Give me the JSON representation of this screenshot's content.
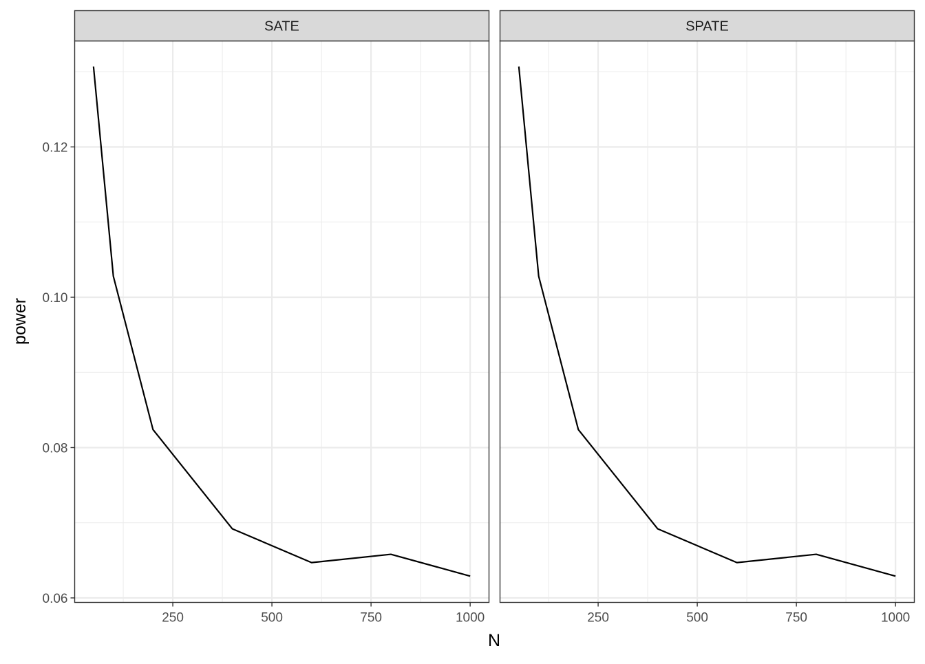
{
  "chart_data": {
    "type": "line",
    "facets": [
      "SATE",
      "SPATE"
    ],
    "xlabel": "N",
    "ylabel": "power",
    "x_ticks": [
      250,
      500,
      750,
      1000
    ],
    "x_tick_labels": [
      "250",
      "500",
      "750",
      "1000"
    ],
    "y_ticks": [
      0.06,
      0.08,
      0.1,
      0.12
    ],
    "y_tick_labels": [
      "0.06",
      "0.08",
      "0.10",
      "0.12"
    ],
    "xlim": [
      2.5,
      1047.5
    ],
    "ylim": [
      0.0594,
      0.1341
    ],
    "grid": true,
    "line_color": "#000000",
    "strip_fill": "#d9d9d9",
    "gridline_color": "#ebebeb",
    "series": [
      {
        "facet": "SATE",
        "x": [
          50,
          100,
          200,
          400,
          600,
          800,
          1000
        ],
        "y": [
          0.1307,
          0.1028,
          0.0824,
          0.0692,
          0.0647,
          0.0658,
          0.0629
        ]
      },
      {
        "facet": "SPATE",
        "x": [
          50,
          100,
          200,
          400,
          600,
          800,
          1000
        ],
        "y": [
          0.1307,
          0.1028,
          0.0824,
          0.0692,
          0.0647,
          0.0658,
          0.0629
        ]
      }
    ]
  }
}
